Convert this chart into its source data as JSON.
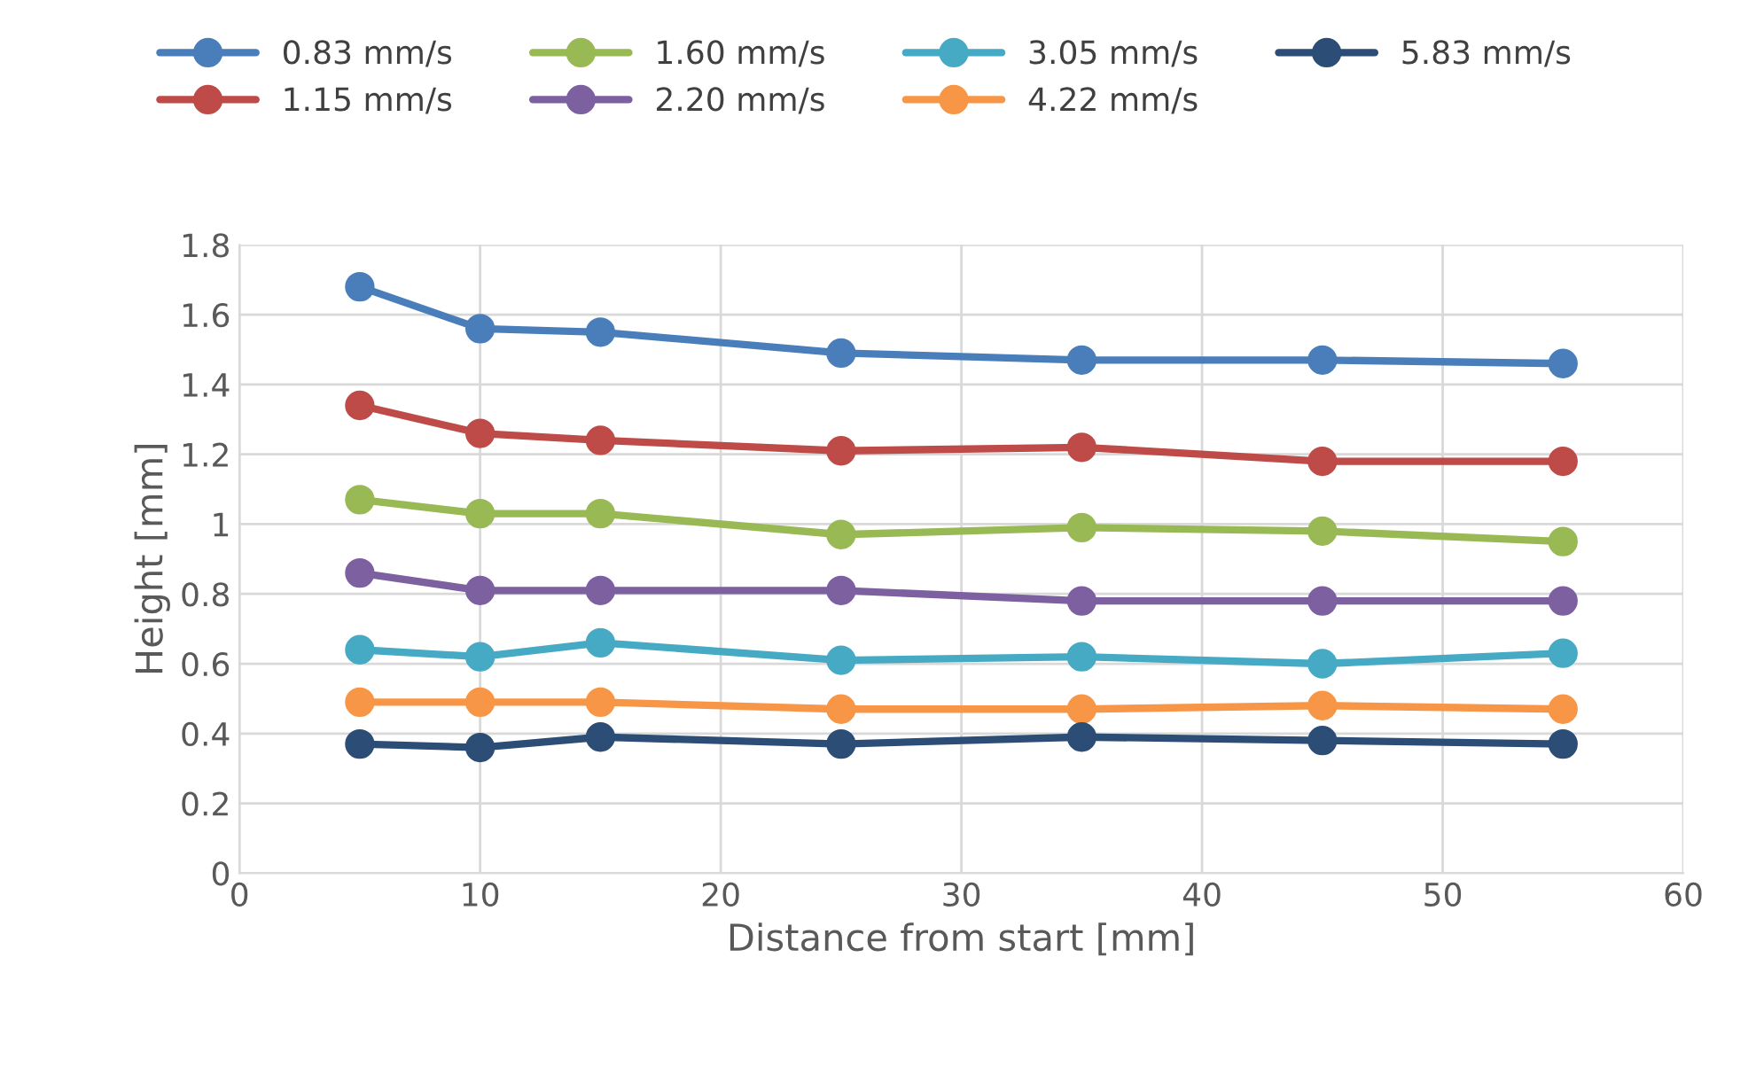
{
  "chart_data": {
    "type": "line",
    "xlabel": "Distance from start [mm]",
    "ylabel": "Height [mm]",
    "x": [
      5,
      10,
      15,
      25,
      35,
      45,
      55
    ],
    "xlim": [
      0,
      60
    ],
    "xticks": [
      0,
      10,
      20,
      30,
      40,
      50,
      60
    ],
    "ylim": [
      0,
      1.8
    ],
    "yticks": [
      0,
      0.2,
      0.4,
      0.6,
      0.8,
      1,
      1.2,
      1.4,
      1.6,
      1.8
    ],
    "grid": true,
    "legend": "top",
    "marker": "circle",
    "line_style": "solid",
    "series": [
      {
        "name": "0.83 mm/s",
        "color": "#4a7ebb",
        "values": [
          1.68,
          1.56,
          1.55,
          1.49,
          1.47,
          1.47,
          1.46
        ]
      },
      {
        "name": "1.15 mm/s",
        "color": "#be4b48",
        "values": [
          1.34,
          1.26,
          1.24,
          1.21,
          1.22,
          1.18,
          1.18
        ]
      },
      {
        "name": "1.60 mm/s",
        "color": "#98b954",
        "values": [
          1.07,
          1.03,
          1.03,
          0.97,
          0.99,
          0.98,
          0.95
        ]
      },
      {
        "name": "2.20 mm/s",
        "color": "#7d60a0",
        "values": [
          0.86,
          0.81,
          0.81,
          0.81,
          0.78,
          0.78,
          0.78
        ]
      },
      {
        "name": "3.05 mm/s",
        "color": "#46aac5",
        "values": [
          0.64,
          0.62,
          0.66,
          0.61,
          0.62,
          0.6,
          0.63
        ]
      },
      {
        "name": "4.22 mm/s",
        "color": "#f79646",
        "values": [
          0.49,
          0.49,
          0.49,
          0.47,
          0.47,
          0.48,
          0.47
        ]
      },
      {
        "name": "5.83 mm/s",
        "color": "#2c4d75",
        "values": [
          0.37,
          0.36,
          0.39,
          0.37,
          0.39,
          0.38,
          0.37
        ]
      }
    ]
  }
}
